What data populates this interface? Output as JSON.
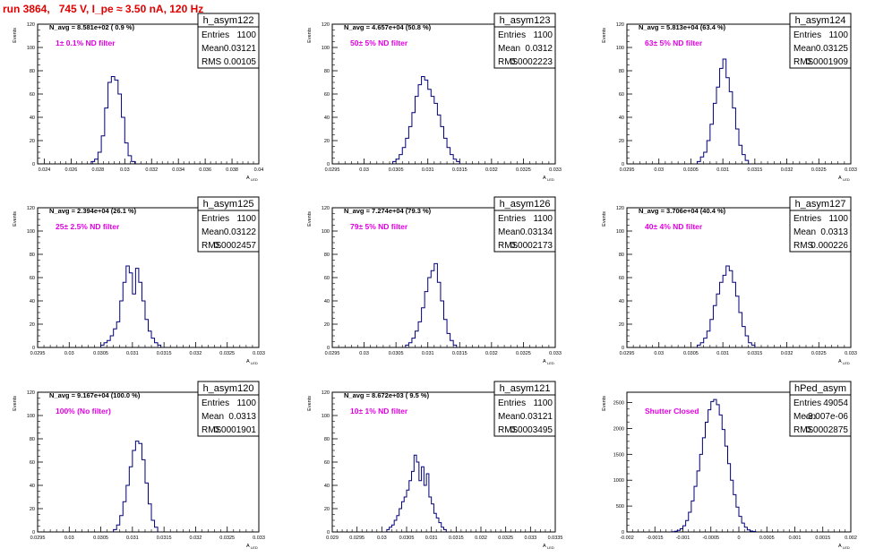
{
  "canvas_title": "run 3864,   745 V, I_pe ≈ 3.50 nA, 120 Hz",
  "colors": {
    "hist": "#00007a",
    "filter_label": "#e000e0",
    "title": "#e00000",
    "frame": "#000000"
  },
  "y_axis_label": "Events",
  "x_axis_label": "A",
  "x_axis_sub": "LED",
  "chart_data": [
    {
      "type": "histogram",
      "name": "h_asym122",
      "navg": "N_avg = 8.581e+02 ( 0.9 %)",
      "filter": "1± 0.1% ND filter",
      "stats": {
        "entries": "1100",
        "mean": "0.03121",
        "rms": "0.00105"
      },
      "xlim": [
        0.0235,
        0.04
      ],
      "ylim": [
        0,
        120
      ],
      "xticks": [
        0.024,
        0.026,
        0.028,
        0.03,
        0.032,
        0.034,
        0.036,
        0.038,
        0.04
      ],
      "xticklabels": [
        "0.024",
        "0.026",
        "0.028",
        "0.03",
        "0.032",
        "0.034",
        "0.036",
        "0.038",
        "0.04"
      ],
      "yticks": [
        0,
        20,
        40,
        60,
        80,
        100,
        120
      ],
      "yticklabels": [
        "0",
        "20",
        "40",
        "60",
        "80",
        "100",
        "120"
      ],
      "binmin": 0.0275,
      "binwidth": 0.00025,
      "counts": [
        2,
        4,
        10,
        24,
        48,
        70,
        75,
        72,
        60,
        40,
        18,
        7,
        2
      ]
    },
    {
      "type": "histogram",
      "name": "h_asym123",
      "navg": "N_avg = 4.657e+04 (50.8 %)",
      "filter": "50± 5% ND filter",
      "stats": {
        "entries": "1100",
        "mean": "0.0312",
        "rms": "0.0002223"
      },
      "xlim": [
        0.0295,
        0.033
      ],
      "ylim": [
        0,
        120
      ],
      "xticks": [
        0.0295,
        0.03,
        0.0305,
        0.031,
        0.0315,
        0.032,
        0.0325,
        0.033
      ],
      "xticklabels": [
        "0.0295",
        "0.03",
        "0.0305",
        "0.031",
        "0.0315",
        "0.032",
        "0.0325",
        "0.033"
      ],
      "yticks": [
        0,
        20,
        40,
        60,
        80,
        100,
        120
      ],
      "yticklabels": [
        "0",
        "20",
        "40",
        "60",
        "80",
        "100",
        "120"
      ],
      "binmin": 0.03045,
      "binwidth": 5e-05,
      "counts": [
        2,
        4,
        8,
        14,
        22,
        32,
        44,
        58,
        68,
        75,
        72,
        64,
        58,
        52,
        42,
        32,
        22,
        14,
        8,
        4,
        2
      ]
    },
    {
      "type": "histogram",
      "name": "h_asym124",
      "navg": "N_avg = 5.813e+04 (63.4 %)",
      "filter": "63± 5% ND filter",
      "stats": {
        "entries": "1100",
        "mean": "0.03125",
        "rms": "0.0001909"
      },
      "xlim": [
        0.0295,
        0.033
      ],
      "ylim": [
        0,
        120
      ],
      "xticks": [
        0.0295,
        0.03,
        0.0305,
        0.031,
        0.0315,
        0.032,
        0.0325,
        0.033
      ],
      "xticklabels": [
        "0.0295",
        "0.03",
        "0.0305",
        "0.031",
        "0.0315",
        "0.032",
        "0.0325",
        "0.033"
      ],
      "yticks": [
        0,
        20,
        40,
        60,
        80,
        100,
        120
      ],
      "yticklabels": [
        "0",
        "20",
        "40",
        "60",
        "80",
        "100",
        "120"
      ],
      "binmin": 0.0306,
      "binwidth": 5e-05,
      "counts": [
        2,
        6,
        10,
        20,
        34,
        52,
        66,
        82,
        90,
        74,
        62,
        48,
        30,
        16,
        8,
        3
      ]
    },
    {
      "type": "histogram",
      "name": "h_asym125",
      "navg": "N_avg = 2.394e+04 (26.1 %)",
      "filter": "25± 2.5% ND filter",
      "stats": {
        "entries": "1100",
        "mean": "0.03122",
        "rms": "0.0002457"
      },
      "xlim": [
        0.0295,
        0.033
      ],
      "ylim": [
        0,
        120
      ],
      "xticks": [
        0.0295,
        0.03,
        0.0305,
        0.031,
        0.0315,
        0.032,
        0.0325,
        0.033
      ],
      "xticklabels": [
        "0.0295",
        "0.03",
        "0.0305",
        "0.031",
        "0.0315",
        "0.032",
        "0.0325",
        "0.033"
      ],
      "yticks": [
        0,
        20,
        40,
        60,
        80,
        100,
        120
      ],
      "yticklabels": [
        "0",
        "20",
        "40",
        "60",
        "80",
        "100",
        "120"
      ],
      "binmin": 0.0305,
      "binwidth": 5e-05,
      "counts": [
        2,
        4,
        6,
        10,
        16,
        22,
        40,
        56,
        70,
        64,
        46,
        68,
        56,
        40,
        24,
        14,
        8,
        4,
        2
      ]
    },
    {
      "type": "histogram",
      "name": "h_asym126",
      "navg": "N_avg = 7.274e+04 (79.3 %)",
      "filter": "79± 5% ND filter",
      "stats": {
        "entries": "1100",
        "mean": "0.03134",
        "rms": "0.0002173"
      },
      "xlim": [
        0.0295,
        0.033
      ],
      "ylim": [
        0,
        120
      ],
      "xticks": [
        0.0295,
        0.03,
        0.0305,
        0.031,
        0.0315,
        0.032,
        0.0325,
        0.033
      ],
      "xticklabels": [
        "0.0295",
        "0.03",
        "0.0305",
        "0.031",
        "0.0315",
        "0.032",
        "0.0325",
        "0.033"
      ],
      "yticks": [
        0,
        20,
        40,
        60,
        80,
        100,
        120
      ],
      "yticklabels": [
        "0",
        "20",
        "40",
        "60",
        "80",
        "100",
        "120"
      ],
      "binmin": 0.03065,
      "binwidth": 5e-05,
      "counts": [
        2,
        4,
        8,
        14,
        22,
        34,
        48,
        60,
        66,
        72,
        56,
        40,
        24,
        12,
        6,
        2
      ]
    },
    {
      "type": "histogram",
      "name": "h_asym127",
      "navg": "N_avg = 3.706e+04 (40.4 %)",
      "filter": "40± 4% ND filter",
      "stats": {
        "entries": "1100",
        "mean": "0.0313",
        "rms": "0.000226"
      },
      "xlim": [
        0.0295,
        0.033
      ],
      "ylim": [
        0,
        120
      ],
      "xticks": [
        0.0295,
        0.03,
        0.0305,
        0.031,
        0.0315,
        0.032,
        0.0325,
        0.033
      ],
      "xticklabels": [
        "0.0295",
        "0.03",
        "0.0305",
        "0.031",
        "0.0315",
        "0.032",
        "0.0325",
        "0.033"
      ],
      "yticks": [
        0,
        20,
        40,
        60,
        80,
        100,
        120
      ],
      "yticklabels": [
        "0",
        "20",
        "40",
        "60",
        "80",
        "100",
        "120"
      ],
      "binmin": 0.0306,
      "binwidth": 5e-05,
      "counts": [
        2,
        4,
        8,
        14,
        24,
        36,
        46,
        56,
        62,
        70,
        66,
        56,
        44,
        30,
        18,
        10,
        4,
        2
      ]
    },
    {
      "type": "histogram",
      "name": "h_asym120",
      "navg": "N_avg = 9.167e+04 (100.0 %)",
      "filter": "100% (No filter)",
      "stats": {
        "entries": "1100",
        "mean": "0.0313",
        "rms": "0.0001901"
      },
      "xlim": [
        0.0295,
        0.033
      ],
      "ylim": [
        0,
        120
      ],
      "xticks": [
        0.0295,
        0.03,
        0.0305,
        0.031,
        0.0315,
        0.032,
        0.0325,
        0.033
      ],
      "xticklabels": [
        "0.0295",
        "0.03",
        "0.0305",
        "0.031",
        "0.0315",
        "0.032",
        "0.0325",
        "0.033"
      ],
      "yticks": [
        0,
        20,
        40,
        60,
        80,
        100,
        120
      ],
      "yticklabels": [
        "0",
        "20",
        "40",
        "60",
        "80",
        "100",
        "120"
      ],
      "binmin": 0.0307,
      "binwidth": 5e-05,
      "counts": [
        2,
        6,
        14,
        26,
        40,
        56,
        70,
        78,
        76,
        62,
        42,
        24,
        10,
        4
      ]
    },
    {
      "type": "histogram",
      "name": "h_asym121",
      "navg": "N_avg = 8.672e+03 ( 9.5 %)",
      "filter": "10± 1% ND filter",
      "stats": {
        "entries": "1100",
        "mean": "0.03121",
        "rms": "0.0003495"
      },
      "xlim": [
        0.029,
        0.0335
      ],
      "ylim": [
        0,
        120
      ],
      "xticks": [
        0.029,
        0.0295,
        0.03,
        0.0305,
        0.031,
        0.0315,
        0.032,
        0.0325,
        0.033,
        0.0335
      ],
      "xticklabels": [
        "0.029",
        "0.0295",
        "0.03",
        "0.0305",
        "0.031",
        "0.0315",
        "0.032",
        "0.0325",
        "0.033",
        "0.0335"
      ],
      "yticks": [
        0,
        20,
        40,
        60,
        80,
        100,
        120
      ],
      "yticklabels": [
        "0",
        "20",
        "40",
        "60",
        "80",
        "100",
        "120"
      ],
      "binmin": 0.0301,
      "binwidth": 5e-05,
      "counts": [
        2,
        4,
        6,
        10,
        14,
        20,
        26,
        30,
        36,
        44,
        52,
        66,
        60,
        44,
        56,
        40,
        50,
        30,
        24,
        16,
        12,
        8,
        4,
        2
      ]
    },
    {
      "type": "histogram",
      "name": "hPed_asym",
      "navg": "",
      "filter": "Shutter Closed",
      "stats": {
        "entries": "49054",
        "mean": "-3.007e-06",
        "rms": "0.0002875"
      },
      "xlim": [
        -0.002,
        0.002
      ],
      "ylim": [
        0,
        2700
      ],
      "xticks": [
        -0.002,
        -0.0015,
        -0.001,
        -0.0005,
        0,
        0.0005,
        0.001,
        0.0015,
        0.002
      ],
      "xticklabels": [
        "-0.002",
        "-0.0015",
        "-0.001",
        "-0.0005",
        "0",
        "0.0005",
        "0.001",
        "0.0015",
        "0.002"
      ],
      "yticks": [
        0,
        500,
        1000,
        1500,
        2000,
        2500
      ],
      "yticklabels": [
        "0",
        "500",
        "1000",
        "1500",
        "2000",
        "2500"
      ],
      "binmin": -0.0012,
      "binwidth": 5e-05,
      "counts": [
        5,
        12,
        30,
        60,
        120,
        220,
        380,
        600,
        880,
        1180,
        1500,
        1820,
        2120,
        2360,
        2520,
        2560,
        2460,
        2260,
        1980,
        1660,
        1320,
        1000,
        720,
        480,
        300,
        170,
        90,
        40,
        18,
        8
      ]
    }
  ]
}
